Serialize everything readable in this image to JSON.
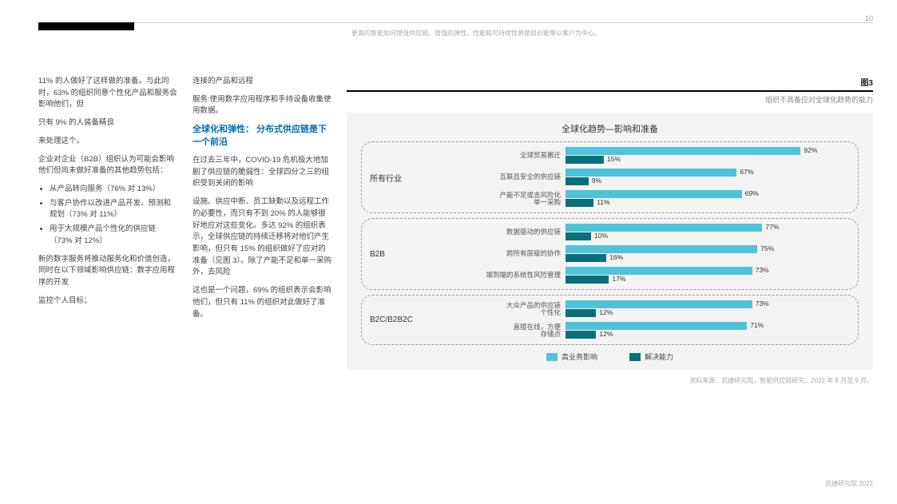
{
  "page_number": "10",
  "header_sub": "更高的智能如何增强供应链。增强的弹性、性能和可持续性将使组织能够以客户为中心。",
  "col1": {
    "p1": "11% 的人做好了这样做的准备。与此同时，63% 的组织同意个性化产品和服务会影响他们，但",
    "p2": "只有 9% 的人装备精良",
    "p3": "来处理这个。",
    "p4": "企业对企业（B2B）组织认为可能会影响他们但尚未做好准备的其他趋势包括：",
    "li1": "从产品转向服务（76% 对 13%）",
    "li2": "与客户协作以改进产品开发、预测和规划（73% 对 11%）",
    "li3": "用于大规模产品个性化的供应链（73% 对 12%）",
    "p5": "新的数字服务将推动服务化和价值创造，同时在以下领域影响供应链：数字应用程序的开发",
    "p6": "监控个人目标；"
  },
  "col2": {
    "p1": "连接的产品和远程",
    "p2": "服务:使用数字应用程序和手持设备收集使用数据。",
    "heading": "全球化和弹性：\n分布式供应链是下一个前沿",
    "p3": "在过去三年中，COVID-19 危机极大地加剧了供应链的脆弱性：全球四分之三的组织受到关闭的影响",
    "p4": "设施、供应中断、员工缺勤以及远程工作的必要性，而只有不到 20% 的人能够很好地应对这些变化。多达 92% 的组织表示，全球供应链的持续迁移将对他们产生影响，但只有 15% 的组织做好了应对的准备（见图 3）。除了产能不足和单一采购外，去风险",
    "p5": "这也是一个问题，69% 的组织表示会影响他们，但只有 11% 的组织对此做好了准备。"
  },
  "figure": {
    "label": "图3",
    "subtitle": "组织不具备应对全球化趋势的能力",
    "chart_title": "全球化趋势—影响和准备",
    "legend1": "高业务影响",
    "legend2": "解决能力",
    "colors": {
      "bar1": "#4dc4d9",
      "bar2": "#0b6e7a",
      "bg": "#f3f3f3"
    },
    "max": 100,
    "groups": [
      {
        "label": "所有行业",
        "items": [
          {
            "label": "全球贸易搬迁",
            "v1": 92,
            "v2": 15
          },
          {
            "label": "互联且安全的供应链",
            "v1": 67,
            "v2": 9
          },
          {
            "label": "产能不足或去风险化\n单一采购",
            "v1": 69,
            "v2": 11
          }
        ]
      },
      {
        "label": "B2B",
        "items": [
          {
            "label": "数据驱动的供应链",
            "v1": 77,
            "v2": 10
          },
          {
            "label": "跨所有层级的协作",
            "v1": 75,
            "v2": 16
          },
          {
            "label": "端到端的系统性风险管理",
            "v1": 73,
            "v2": 17
          }
        ]
      },
      {
        "label": "B2C/B2B2C",
        "items": [
          {
            "label": "大众产品的供应链\n个性化",
            "v1": 73,
            "v2": 12
          },
          {
            "label": "直接在线，方便\n存储点",
            "v1": 71,
            "v2": 12
          }
        ]
      }
    ],
    "source": "资料来源：凯捷研究院，智能供应链研究，2022 年 8 月至 9 月。"
  },
  "footer": "凯捷研究院 2022"
}
